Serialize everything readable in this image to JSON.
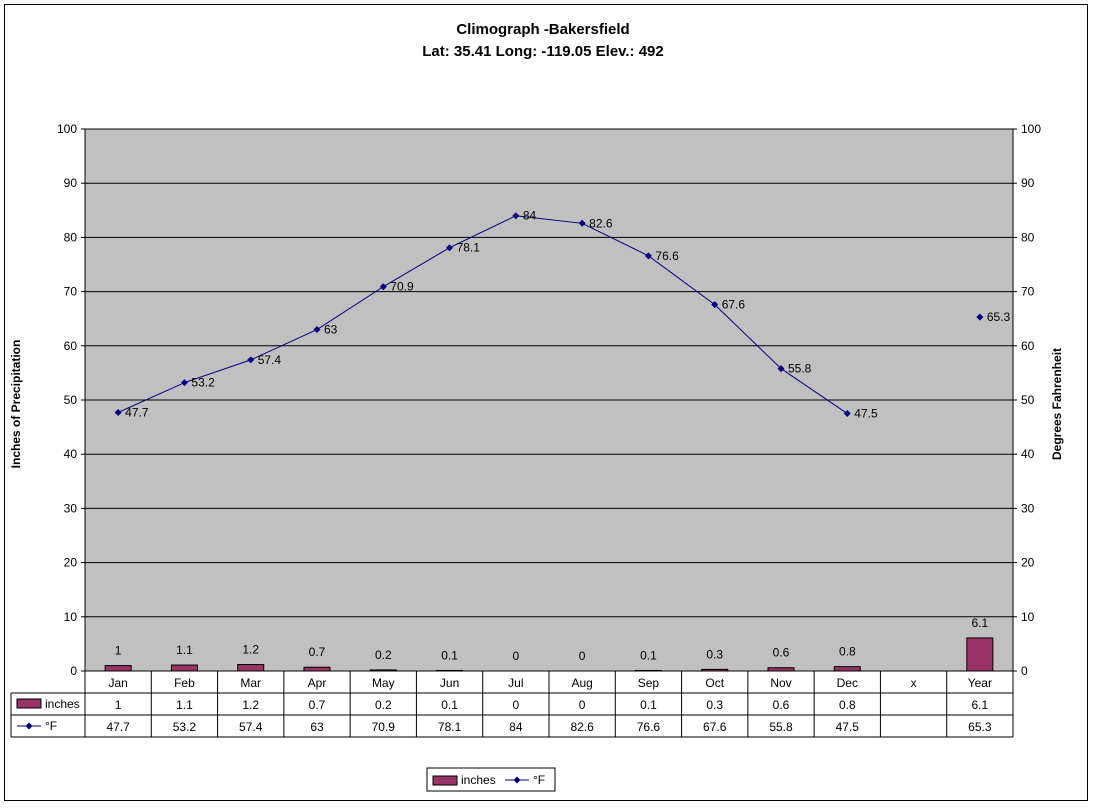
{
  "chart_data": {
    "type": "bar",
    "title": "Climograph -Bakersfield",
    "subtitle": "Lat: 35.41 Long: -119.05 Elev.: 492",
    "categories": [
      "Jan",
      "Feb",
      "Mar",
      "Apr",
      "May",
      "Jun",
      "Jul",
      "Aug",
      "Sep",
      "Oct",
      "Nov",
      "Dec",
      "x",
      "Year"
    ],
    "series": [
      {
        "name": "inches",
        "kind": "bar",
        "axis": "left",
        "color": "#993366",
        "values": [
          1,
          1.1,
          1.2,
          0.7,
          0.2,
          0.1,
          0,
          0,
          0.1,
          0.3,
          0.6,
          0.8,
          null,
          6.1
        ],
        "labels": [
          "1",
          "1.1",
          "1.2",
          "0.7",
          "0.2",
          "0.1",
          "0",
          "0",
          "0.1",
          "0.3",
          "0.6",
          "0.8",
          "",
          "6.1"
        ]
      },
      {
        "name": "°F",
        "kind": "line",
        "axis": "right",
        "color": "#000080",
        "values": [
          47.7,
          53.2,
          57.4,
          63,
          70.9,
          78.1,
          84,
          82.6,
          76.6,
          67.6,
          55.8,
          47.5,
          null,
          65.3
        ],
        "labels": [
          "47.7",
          "53.2",
          "57.4",
          "63",
          "70.9",
          "78.1",
          "84",
          "82.6",
          "76.6",
          "67.6",
          "55.8",
          "47.5",
          "",
          "65.3"
        ]
      }
    ],
    "ylabel": "Inches of Precipitation",
    "y2label": "Degrees Fahrenheit",
    "ylim": [
      0,
      100
    ],
    "y2lim": [
      0,
      100
    ],
    "yticks": [
      "0",
      "10",
      "20",
      "30",
      "40",
      "50",
      "60",
      "70",
      "80",
      "90",
      "100"
    ],
    "grid": true,
    "plot_background": "#c0c0c0",
    "legend_position": "bottom",
    "data_table": true
  }
}
